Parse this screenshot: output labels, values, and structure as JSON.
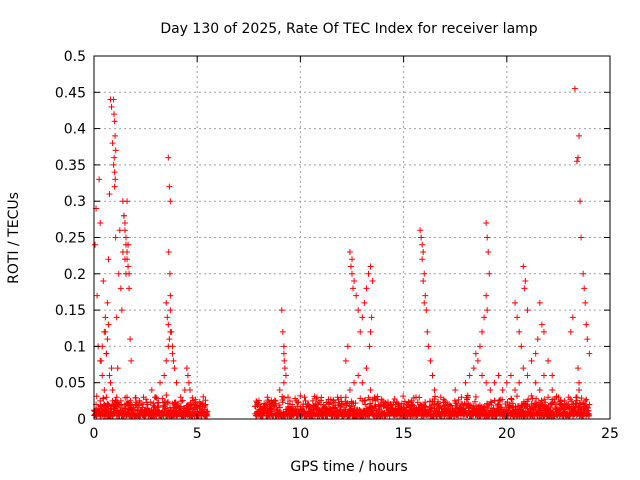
{
  "chart_data": {
    "type": "scatter",
    "title": "Day 130 of 2025, Rate Of TEC Index for receiver lamp",
    "xlabel": "GPS time / hours",
    "ylabel": "ROTI / TECUs",
    "xlim": [
      0,
      25
    ],
    "ylim": [
      0,
      0.5
    ],
    "x_ticks": [
      "0",
      "5",
      "10",
      "15",
      "20",
      "25"
    ],
    "y_ticks": [
      "0",
      "0.05",
      "0.1",
      "0.15",
      "0.2",
      "0.25",
      "0.3",
      "0.35",
      "0.4",
      "0.45",
      "0.5"
    ],
    "grid": true,
    "marker": "plus",
    "color": "#ff0000",
    "series": [
      {
        "x": [
          0.05,
          0.1,
          0.15,
          0.2,
          0.25,
          0.3,
          0.35,
          0.4,
          0.45,
          0.5,
          0.55,
          0.6,
          0.65,
          0.7,
          0.75,
          0.8,
          0.85,
          0.9,
          0.95,
          1.0,
          1.05,
          1.1,
          1.15,
          1.2,
          1.25,
          1.3,
          1.35,
          1.4,
          1.45,
          1.5,
          1.55,
          1.6,
          1.65,
          1.7,
          1.75,
          1.8,
          0.1,
          0.2,
          0.3,
          0.4,
          0.5,
          0.6,
          0.7,
          0.8,
          0.9,
          1.0,
          1.1,
          1.2,
          1.3,
          1.4,
          1.5,
          1.6,
          1.7,
          0.95,
          0.97,
          1.0,
          1.02,
          1.05,
          0.98,
          1.0,
          1.03,
          1.4,
          1.45,
          1.5,
          1.55,
          1.6,
          1.65,
          1.7,
          1.5,
          1.55,
          1.6,
          0.3,
          0.4,
          0.5,
          0.55,
          0.6,
          0.65,
          0.7,
          0.75,
          0.8,
          0.85,
          0.9,
          2.0,
          2.2,
          2.4,
          2.6,
          2.8,
          3.0,
          3.2,
          3.4,
          3.5,
          3.6,
          3.7,
          3.8,
          3.9,
          4.0,
          4.2,
          4.4,
          4.6,
          4.8,
          5.0,
          5.2,
          5.4,
          3.5,
          3.55,
          3.6,
          3.65,
          3.7,
          3.75,
          3.8,
          3.85,
          3.6,
          3.65,
          3.7,
          3.62,
          3.68,
          3.7,
          4.5,
          4.55,
          4.6,
          4.65,
          7.9,
          8.0,
          8.2,
          8.4,
          8.6,
          8.8,
          9.0,
          9.2,
          9.4,
          9.6,
          9.8,
          10.0,
          10.2,
          10.4,
          10.6,
          10.8,
          11.0,
          11.2,
          11.4,
          11.6,
          11.8,
          9.1,
          9.15,
          9.2,
          9.25,
          9.3,
          9.2,
          9.22,
          12.0,
          12.2,
          12.4,
          12.6,
          12.8,
          13.0,
          13.2,
          13.4,
          13.6,
          13.8,
          14.0,
          14.2,
          14.4,
          14.6,
          14.8,
          15.0,
          15.2,
          15.4,
          15.6,
          15.8,
          12.2,
          12.3,
          12.4,
          12.5,
          12.6,
          12.7,
          12.8,
          12.9,
          13.0,
          13.1,
          13.2,
          13.3,
          13.4,
          13.5,
          12.45,
          12.5,
          12.55,
          13.35,
          13.4,
          13.45,
          15.8,
          15.85,
          15.9,
          15.95,
          16.0,
          16.05,
          16.1,
          16.15,
          16.2,
          16.3,
          16.4,
          16.5,
          15.9,
          15.95,
          16.0,
          16.5,
          16.8,
          17.0,
          17.2,
          17.5,
          17.8,
          18.0,
          18.2,
          18.4,
          18.6,
          18.8,
          19.0,
          19.2,
          19.4,
          19.6,
          19.8,
          20.0,
          20.2,
          20.4,
          20.6,
          20.8,
          21.0,
          21.2,
          21.4,
          21.6,
          21.8,
          22.0,
          22.2,
          22.4,
          22.6,
          22.8,
          23.0,
          23.2,
          23.4,
          23.6,
          23.8,
          24.0,
          18.5,
          18.7,
          18.8,
          18.9,
          19.0,
          19.05,
          19.1,
          19.15,
          19.0,
          19.05,
          20.4,
          20.5,
          20.6,
          20.7,
          20.8,
          20.85,
          20.9,
          21.0,
          21.4,
          21.5,
          21.6,
          21.7,
          21.8,
          22.0,
          22.2,
          23.1,
          23.2,
          23.3,
          23.4,
          23.45,
          23.5,
          23.55,
          23.6,
          23.7,
          23.75,
          23.8,
          23.85,
          23.9,
          24.0,
          23.45,
          23.5,
          23.5
        ],
        "y": [
          0.24,
          0.29,
          0.17,
          0.1,
          0.33,
          0.27,
          0.08,
          0.06,
          0.19,
          0.04,
          0.12,
          0.09,
          0.16,
          0.22,
          0.31,
          0.44,
          0.43,
          0.38,
          0.35,
          0.32,
          0.25,
          0.14,
          0.07,
          0.2,
          0.26,
          0.18,
          0.15,
          0.23,
          0.28,
          0.22,
          0.2,
          0.3,
          0.24,
          0.18,
          0.11,
          0.08,
          0.02,
          0.015,
          0.025,
          0.01,
          0.02,
          0.03,
          0.02,
          0.015,
          0.025,
          0.02,
          0.03,
          0.02,
          0.025,
          0.015,
          0.02,
          0.03,
          0.02,
          0.44,
          0.42,
          0.41,
          0.39,
          0.37,
          0.36,
          0.34,
          0.33,
          0.3,
          0.28,
          0.27,
          0.25,
          0.23,
          0.21,
          0.2,
          0.26,
          0.24,
          0.22,
          0.08,
          0.1,
          0.12,
          0.14,
          0.09,
          0.11,
          0.13,
          0.06,
          0.05,
          0.07,
          0.04,
          0.02,
          0.025,
          0.03,
          0.02,
          0.04,
          0.03,
          0.05,
          0.06,
          0.08,
          0.1,
          0.12,
          0.09,
          0.07,
          0.05,
          0.03,
          0.04,
          0.02,
          0.025,
          0.015,
          0.01,
          0.02,
          0.16,
          0.14,
          0.13,
          0.11,
          0.15,
          0.12,
          0.1,
          0.08,
          0.36,
          0.32,
          0.3,
          0.23,
          0.2,
          0.17,
          0.07,
          0.06,
          0.05,
          0.04,
          0.01,
          0.02,
          0.015,
          0.03,
          0.02,
          0.025,
          0.04,
          0.05,
          0.03,
          0.02,
          0.025,
          0.015,
          0.03,
          0.02,
          0.025,
          0.03,
          0.02,
          0.015,
          0.02,
          0.025,
          0.03,
          0.15,
          0.12,
          0.09,
          0.07,
          0.06,
          0.1,
          0.08,
          0.02,
          0.03,
          0.04,
          0.05,
          0.06,
          0.05,
          0.07,
          0.04,
          0.03,
          0.02,
          0.025,
          0.02,
          0.015,
          0.02,
          0.015,
          0.01,
          0.02,
          0.025,
          0.03,
          0.02,
          0.08,
          0.1,
          0.23,
          0.22,
          0.19,
          0.17,
          0.15,
          0.12,
          0.14,
          0.16,
          0.18,
          0.2,
          0.21,
          0.19,
          0.21,
          0.2,
          0.18,
          0.1,
          0.12,
          0.14,
          0.26,
          0.25,
          0.24,
          0.23,
          0.2,
          0.17,
          0.15,
          0.12,
          0.1,
          0.08,
          0.06,
          0.04,
          0.22,
          0.19,
          0.16,
          0.02,
          0.03,
          0.025,
          0.02,
          0.04,
          0.03,
          0.05,
          0.06,
          0.07,
          0.08,
          0.06,
          0.05,
          0.04,
          0.05,
          0.06,
          0.04,
          0.05,
          0.06,
          0.04,
          0.05,
          0.07,
          0.06,
          0.08,
          0.05,
          0.04,
          0.06,
          0.03,
          0.04,
          0.03,
          0.02,
          0.025,
          0.03,
          0.02,
          0.03,
          0.02,
          0.025,
          0.02,
          0.09,
          0.1,
          0.12,
          0.14,
          0.27,
          0.25,
          0.23,
          0.2,
          0.17,
          0.15,
          0.16,
          0.14,
          0.12,
          0.1,
          0.21,
          0.18,
          0.19,
          0.15,
          0.09,
          0.11,
          0.16,
          0.13,
          0.12,
          0.08,
          0.06,
          0.12,
          0.14,
          0.455,
          0.355,
          0.36,
          0.39,
          0.3,
          0.25,
          0.2,
          0.18,
          0.16,
          0.13,
          0.11,
          0.09,
          0.07,
          0.05,
          0.04
        ]
      }
    ]
  }
}
